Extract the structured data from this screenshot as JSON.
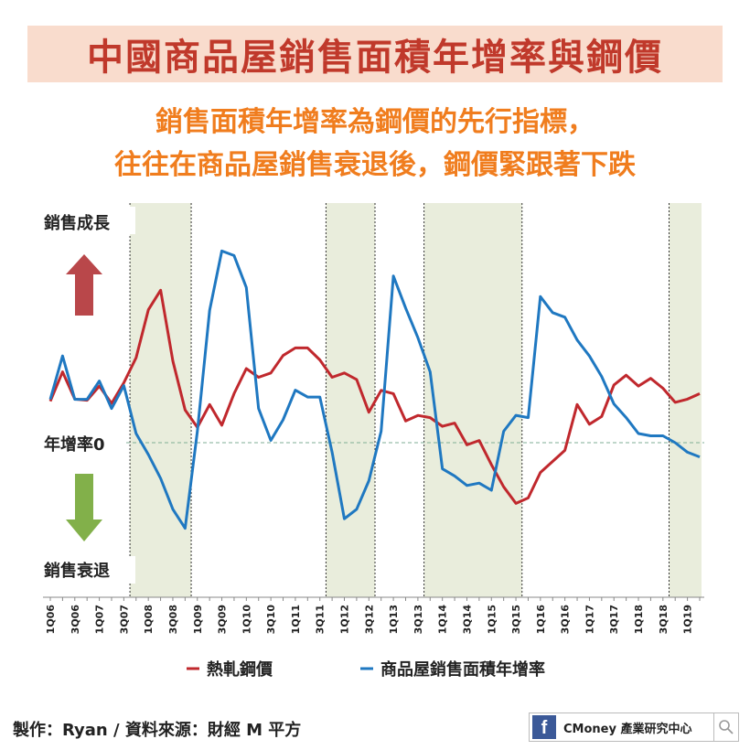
{
  "title": "中國商品屋銷售面積年增率與鋼價",
  "subtitle_line1": "銷售面積年增率為鋼價的先行指標，",
  "subtitle_line2": "往往在商品屋銷售衰退後，鋼價緊跟著下跌",
  "labels": {
    "growth": "銷售成長",
    "zero": "年增率0",
    "decline": "銷售衰退"
  },
  "footer": {
    "credit": "製作：Ryan / 資料來源：財經 M 平方",
    "brand": "CMoney 產業研究中心"
  },
  "colors": {
    "steel": "#c0282d",
    "sales": "#1f78c1",
    "shade": "#e9eddc",
    "up_arrow": "#b9474a",
    "down_arrow": "#82b04a"
  },
  "chart_data": {
    "type": "line",
    "x": [
      "1Q06",
      "2Q06",
      "3Q06",
      "4Q06",
      "1Q07",
      "2Q07",
      "3Q07",
      "4Q07",
      "1Q08",
      "2Q08",
      "3Q08",
      "4Q08",
      "1Q09",
      "2Q09",
      "3Q09",
      "4Q09",
      "1Q10",
      "2Q10",
      "3Q10",
      "4Q10",
      "1Q11",
      "2Q11",
      "3Q11",
      "4Q11",
      "1Q12",
      "2Q12",
      "3Q12",
      "4Q12",
      "1Q13",
      "2Q13",
      "3Q13",
      "4Q13",
      "1Q14",
      "2Q14",
      "3Q14",
      "4Q14",
      "1Q15",
      "2Q15",
      "3Q15",
      "4Q15",
      "1Q16",
      "2Q16",
      "3Q16",
      "4Q16",
      "1Q17",
      "2Q17",
      "3Q17",
      "4Q17",
      "1Q18",
      "2Q18",
      "3Q18",
      "4Q18",
      "1Q19",
      "2Q19"
    ],
    "tick_labels": [
      "1Q06",
      "3Q06",
      "1Q07",
      "3Q07",
      "1Q08",
      "3Q08",
      "1Q09",
      "3Q09",
      "1Q10",
      "3Q10",
      "1Q11",
      "3Q11",
      "1Q12",
      "3Q12",
      "1Q13",
      "3Q13",
      "1Q14",
      "3Q14",
      "1Q15",
      "3Q15",
      "1Q16",
      "3Q16",
      "1Q17",
      "3Q17",
      "1Q18",
      "3Q18",
      "1Q19"
    ],
    "series": [
      {
        "name": "熱軋鋼價",
        "color": "#c0282d",
        "values": [
          38,
          65,
          40,
          39,
          52,
          36,
          55,
          78,
          122,
          140,
          75,
          30,
          14,
          35,
          16,
          45,
          68,
          60,
          64,
          80,
          87,
          87,
          76,
          60,
          64,
          58,
          28,
          48,
          45,
          20,
          25,
          23,
          15,
          18,
          -2,
          2,
          -20,
          -40,
          -55,
          -50,
          -27,
          -17,
          -7,
          35,
          17,
          24,
          53,
          62,
          52,
          59,
          50,
          37,
          40,
          45
        ],
        "ylim": [
          -140,
          220
        ]
      },
      {
        "name": "商品屋銷售面積年增率",
        "color": "#1f78c1",
        "values": [
          19,
          38,
          19,
          19,
          27,
          15,
          25,
          4,
          -5,
          -15,
          -28,
          -36,
          5,
          58,
          84,
          82,
          68,
          15,
          1,
          10,
          23,
          20,
          20,
          -4,
          -32,
          -28,
          -16,
          5,
          73,
          59,
          46,
          31,
          -11,
          -14,
          -18,
          -17,
          -20,
          5,
          12,
          11,
          64,
          57,
          55,
          45,
          38,
          29,
          17,
          11,
          4,
          3,
          3,
          0,
          -4,
          -6
        ],
        "ylim": [
          -65,
          105
        ]
      }
    ],
    "shaded_periods": [
      [
        "4Q07",
        "4Q08"
      ],
      [
        "4Q11",
        "3Q12"
      ],
      [
        "4Q13",
        "3Q15"
      ],
      [
        "4Q18",
        "2Q19"
      ]
    ],
    "zero_line": true
  }
}
